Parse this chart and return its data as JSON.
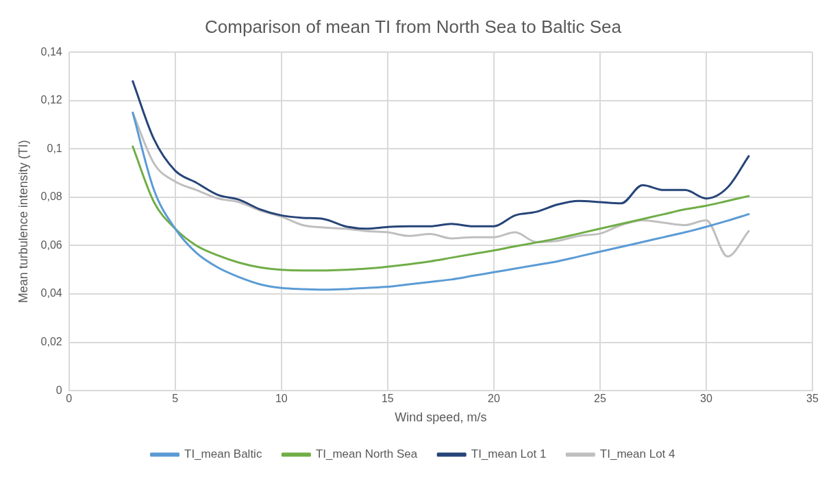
{
  "chart_data": {
    "type": "line",
    "title": "Comparison of mean TI from North Sea to Baltic Sea",
    "xlabel": "Wind speed, m/s",
    "ylabel": "Mean turbulence intensity (TI)",
    "x": [
      3,
      4,
      5,
      6,
      7,
      8,
      9,
      10,
      11,
      12,
      13,
      14,
      15,
      16,
      17,
      18,
      19,
      20,
      21,
      22,
      23,
      24,
      25,
      26,
      27,
      28,
      29,
      30,
      31,
      32
    ],
    "series": [
      {
        "name": "TI_mean Baltic",
        "color": "#5b9bd5",
        "values": [
          0.115,
          0.083,
          0.067,
          0.057,
          0.051,
          0.047,
          0.044,
          0.0425,
          0.042,
          0.0418,
          0.042,
          0.0425,
          0.043,
          0.044,
          0.045,
          0.046,
          0.0475,
          0.049,
          0.0505,
          0.052,
          0.0535,
          0.0555,
          0.0575,
          0.0595,
          0.0615,
          0.0635,
          0.0655,
          0.0678,
          0.0703,
          0.073
        ]
      },
      {
        "name": "TI_mean North Sea",
        "color": "#70ad47",
        "values": [
          0.101,
          0.078,
          0.067,
          0.06,
          0.056,
          0.053,
          0.051,
          0.05,
          0.0497,
          0.0497,
          0.05,
          0.0505,
          0.0513,
          0.0523,
          0.0535,
          0.055,
          0.0565,
          0.058,
          0.0597,
          0.0613,
          0.063,
          0.065,
          0.067,
          0.069,
          0.071,
          0.073,
          0.075,
          0.0765,
          0.0785,
          0.0805
        ]
      },
      {
        "name": "TI_mean Lot 1",
        "color": "#264478",
        "values": [
          0.128,
          0.104,
          0.091,
          0.086,
          0.081,
          0.079,
          0.075,
          0.0725,
          0.0715,
          0.071,
          0.068,
          0.067,
          0.0677,
          0.068,
          0.068,
          0.069,
          0.068,
          0.068,
          0.0725,
          0.074,
          0.077,
          0.0785,
          0.078,
          0.0775,
          0.085,
          0.083,
          0.083,
          0.0795,
          0.084,
          0.097
        ]
      },
      {
        "name": "TI_mean Lot 4",
        "color": "#bfbfbf",
        "values": [
          0.115,
          0.094,
          0.0865,
          0.083,
          0.0795,
          0.078,
          0.0745,
          0.072,
          0.0685,
          0.0675,
          0.067,
          0.066,
          0.0655,
          0.064,
          0.0648,
          0.063,
          0.0635,
          0.0635,
          0.0655,
          0.0615,
          0.062,
          0.064,
          0.065,
          0.0685,
          0.0705,
          0.0695,
          0.0685,
          0.0705,
          0.0555,
          0.066
        ]
      }
    ],
    "xlim": [
      0,
      35
    ],
    "xticks": [
      0,
      5,
      10,
      15,
      20,
      25,
      30,
      35
    ],
    "ylim": [
      0,
      0.14
    ],
    "yticks": [
      0,
      {
        "value": 0.02,
        "label": "0,02"
      },
      {
        "value": 0.04,
        "label": "0,04"
      },
      {
        "value": 0.06,
        "label": "0,06"
      },
      {
        "value": 0.08,
        "label": "0,08"
      },
      {
        "value": 0.1,
        "label": "0,1"
      },
      {
        "value": 0.12,
        "label": "0,12"
      },
      {
        "value": 0.14,
        "label": "0,14"
      }
    ],
    "grid": true,
    "legend": "bottom",
    "marker": "none",
    "line_style": "solid"
  }
}
